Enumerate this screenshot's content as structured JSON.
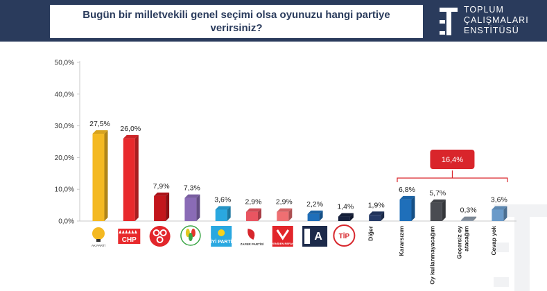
{
  "header": {
    "question": "Bugün bir milletvekili genel seçimi olsa oyunuzu hangi partiye\nverirsiniz?",
    "logo_lines": [
      "TOPLUM",
      "ÇALIŞMALARI",
      "ENSTİTÜSÜ"
    ]
  },
  "colors": {
    "header_bg": "#2a3b5c",
    "bracket": "#d9252b"
  },
  "chart_data": {
    "type": "bar",
    "title": "",
    "xlabel": "",
    "ylabel": "",
    "ylim": [
      0,
      50
    ],
    "yticks": [
      "0,0%",
      "10,0%",
      "20,0%",
      "30,0%",
      "40,0%",
      "50,0%"
    ],
    "grid": false,
    "bars": [
      {
        "category": "AK PARTİ",
        "value": 27.5,
        "label": "27,5%",
        "color": "#f4b922",
        "icon": "akp-logo"
      },
      {
        "category": "CHP",
        "value": 26.0,
        "label": "26,0%",
        "color": "#e8292c",
        "icon": "chp-logo"
      },
      {
        "category": "MHP",
        "value": 7.9,
        "label": "7,9%",
        "color": "#c3161c",
        "icon": "mhp-logo"
      },
      {
        "category": "YSP",
        "value": 7.3,
        "label": "7,3%",
        "color": "#8a6bb6",
        "icon": "ysp-logo"
      },
      {
        "category": "İYİ PARTİ",
        "value": 3.6,
        "label": "3,6%",
        "color": "#2aa8e0",
        "icon": "iyi-logo"
      },
      {
        "category": "ZAFER PARTİSİ",
        "value": 2.9,
        "label": "2,9%",
        "color": "#e95561",
        "icon": "zafer-logo"
      },
      {
        "category": "YENİDEN REFAH",
        "value": 2.9,
        "label": "2,9%",
        "color": "#ef6f72",
        "icon": "refah-logo"
      },
      {
        "category": "A PARTİ",
        "value": 2.2,
        "label": "2,2%",
        "color": "#1f6fba",
        "icon": "a-parti-logo"
      },
      {
        "category": "TİP",
        "value": 1.4,
        "label": "1,4%",
        "color": "#16213f",
        "icon": "tip-logo"
      },
      {
        "category": "Diğer",
        "value": 1.9,
        "label": "1,9%",
        "color": "#253a66",
        "text_label": "Diğer"
      },
      {
        "category": "Kararsızım",
        "value": 6.8,
        "label": "6,8%",
        "color": "#1f6fba",
        "text_label": "Kararsızım"
      },
      {
        "category": "Oy kullanmayacağım",
        "value": 5.7,
        "label": "5,7%",
        "color": "#4a4c52",
        "text_label": "Oy kullanmayacağım"
      },
      {
        "category": "Geçersiz oy atacağım",
        "value": 0.3,
        "label": "0,3%",
        "color": "#8d9aaa",
        "text_label": [
          "Geçersiz oy",
          "atacağım"
        ]
      },
      {
        "category": "Cevap yok",
        "value": 3.6,
        "label": "3,6%",
        "color": "#6a9ac9",
        "text_label": "Cevap yok"
      }
    ],
    "bracket": {
      "label": "16,4%",
      "from_index": 10,
      "to_index": 13
    }
  }
}
